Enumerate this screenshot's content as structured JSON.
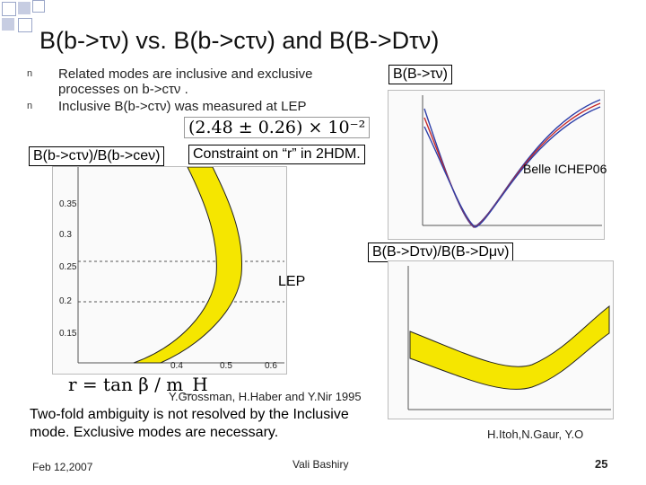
{
  "slide": {
    "title": "B(b->τν) vs. B(b->cτν) and B(B->Dτν)",
    "bullets": [
      "Related modes are inclusive and exclusive processes on b->cτν .",
      "Inclusive B(b->cτν) was measured at LEP"
    ],
    "bullet_marker": "n",
    "measurement_formula": "(2.48 ± 0.26) × 10⁻²",
    "label_ratio_inclusive": "B(b->cτν)/B(b->ceν)",
    "label_constraint": "Constraint on “r” in 2HDM.",
    "label_btaunu": "B(B->τν)",
    "label_belle": "Belle ICHEP06",
    "label_ratio_exclusive": "B(B->Dτν)/B(B->Dμν)",
    "label_lep": "LEP",
    "r_formula": "r = tan β / m_H",
    "citation_left": "Y.Grossman, H.Haber and Y.Nir 1995",
    "conclusion": "Two-fold ambiguity is not resolved by the Inclusive mode. Exclusive modes are necessary.",
    "citation_right": "H.Itoh,N.Gaur, Y.O",
    "date": "Feb 12,2007",
    "author": "Vali Bashiry",
    "page_number": "25"
  },
  "left_plot": {
    "y_ticks": [
      "0.35",
      "0.3",
      "0.25",
      "0.2",
      "0.15"
    ],
    "x_ticks": [
      "0.4",
      "0.5",
      "0.6"
    ],
    "band_color": "#f5e600"
  },
  "colors": {
    "accent_squares": "#9aa6c8",
    "curve_red": "#c62828",
    "curve_blue": "#2c3ea8"
  }
}
